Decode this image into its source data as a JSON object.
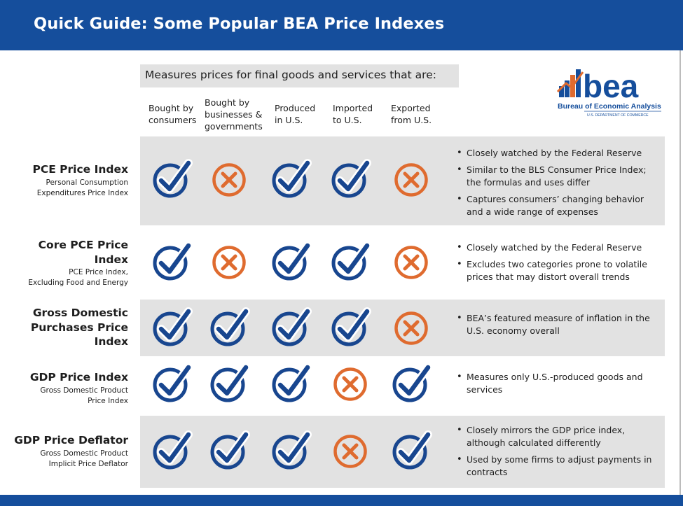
{
  "title": "Quick Guide: Some Popular BEA Price Indexes",
  "measures_banner": "Measures prices for final goods and services that are:",
  "columns": [
    "Bought by\nconsumers",
    "Bought by\nbusinesses &\ngovernments",
    "Produced\nin U.S.",
    "Imported\nto  U.S.",
    "Exported\nfrom U.S."
  ],
  "logo": {
    "wordmark": "bea",
    "name": "Bureau of Economic Analysis",
    "department": "U.S. DEPARTMENT OF COMMERCE"
  },
  "rows": [
    {
      "name": "PCE Price Index",
      "subtitle": "Personal Consumption\nExpenditures Price Index",
      "marks": [
        "check",
        "cross",
        "check",
        "check",
        "cross"
      ],
      "bullets": [
        "Closely watched by the Federal Reserve",
        "Similar to the BLS Consumer Price Index; the formulas and uses differ",
        "Captures consumers’ changing behavior and a wide range of expenses"
      ]
    },
    {
      "name": "Core PCE Price\nIndex",
      "subtitle": "PCE Price Index,\nExcluding Food and Energy",
      "marks": [
        "check",
        "cross",
        "check",
        "check",
        "cross"
      ],
      "bullets": [
        "Closely watched by the Federal Reserve",
        "Excludes two categories prone to volatile prices that may distort overall trends"
      ]
    },
    {
      "name": "Gross Domestic\nPurchases Price\nIndex",
      "subtitle": "",
      "marks": [
        "check",
        "check",
        "check",
        "check",
        "cross"
      ],
      "bullets": [
        "BEA’s featured measure of inflation in the U.S. economy overall"
      ]
    },
    {
      "name": "GDP Price Index",
      "subtitle": "Gross Domestic Product\nPrice Index",
      "marks": [
        "check",
        "check",
        "check",
        "cross",
        "check"
      ],
      "bullets": [
        "Measures only U.S.-produced goods and services"
      ]
    },
    {
      "name": "GDP Price Deflator",
      "subtitle": "Gross Domestic Product\nImplicit Price Deflator",
      "marks": [
        "check",
        "check",
        "check",
        "cross",
        "check"
      ],
      "bullets": [
        "Closely mirrors the GDP price index, although calculated differently",
        "Used by some firms to adjust payments in contracts"
      ]
    }
  ],
  "icons": {
    "check": "check-circle-icon",
    "cross": "x-circle-icon"
  },
  "colors": {
    "header_blue": "#154e9c",
    "check_blue": "#18468f",
    "cross_orange": "#df6b2f",
    "row_gray": "#e2e2e2"
  }
}
